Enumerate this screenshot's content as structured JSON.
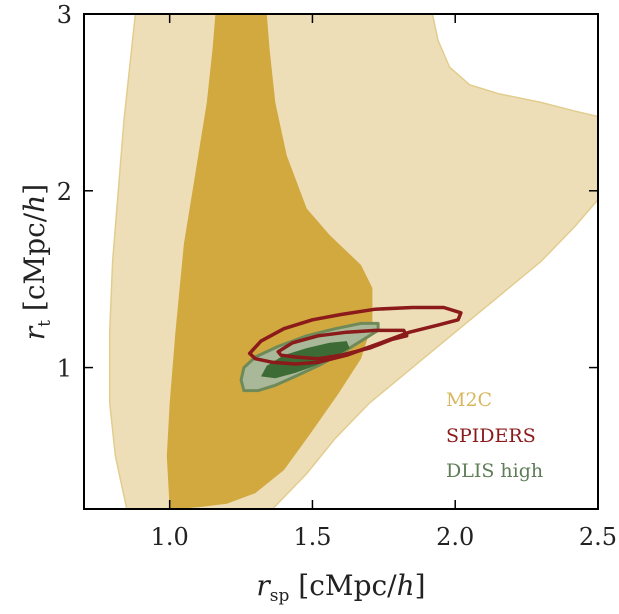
{
  "chart_data": {
    "type": "contour",
    "title": "",
    "xlabel": "r_sp [cMpc/h]",
    "ylabel": "r_t [cMpc/h]",
    "xlim": [
      0.7,
      2.5
    ],
    "ylim": [
      0.2,
      3.0
    ],
    "x_ticks": [
      1.0,
      1.5,
      2.0,
      2.5
    ],
    "x_tick_labels": [
      "1.0",
      "1.5",
      "2.0",
      "2.5"
    ],
    "y_ticks": [
      1,
      2,
      3
    ],
    "y_tick_labels": [
      "1",
      "2",
      "3"
    ],
    "grid": false,
    "legend_position": "bottom-right",
    "series": [
      {
        "name": "M2C",
        "color_outer": "#eedeb8",
        "color_inner": "#d2a93f",
        "edge_color": "#e2cd8e",
        "contours": [
          {
            "level": "outer",
            "points": [
              [
                0.85,
                0.2
              ],
              [
                0.81,
                0.5
              ],
              [
                0.79,
                0.8
              ],
              [
                0.79,
                1.2
              ],
              [
                0.8,
                1.6
              ],
              [
                0.82,
                2.0
              ],
              [
                0.84,
                2.4
              ],
              [
                0.86,
                2.7
              ],
              [
                0.88,
                3.0
              ],
              [
                1.92,
                3.0
              ],
              [
                1.94,
                2.85
              ],
              [
                1.98,
                2.7
              ],
              [
                2.05,
                2.6
              ],
              [
                2.15,
                2.55
              ],
              [
                2.3,
                2.5
              ],
              [
                2.42,
                2.45
              ],
              [
                2.5,
                2.42
              ],
              [
                2.5,
                2.15
              ],
              [
                2.5,
                1.95
              ],
              [
                2.42,
                1.8
              ],
              [
                2.3,
                1.6
              ],
              [
                2.15,
                1.4
              ],
              [
                2.0,
                1.2
              ],
              [
                1.85,
                1.0
              ],
              [
                1.7,
                0.8
              ],
              [
                1.58,
                0.6
              ],
              [
                1.48,
                0.4
              ],
              [
                1.36,
                0.2
              ]
            ]
          },
          {
            "level": "inner",
            "points": [
              [
                1.0,
                0.2
              ],
              [
                0.99,
                0.5
              ],
              [
                1.0,
                0.8
              ],
              [
                1.02,
                1.2
              ],
              [
                1.05,
                1.7
              ],
              [
                1.09,
                2.1
              ],
              [
                1.13,
                2.5
              ],
              [
                1.15,
                2.8
              ],
              [
                1.16,
                3.0
              ],
              [
                1.34,
                3.0
              ],
              [
                1.35,
                2.8
              ],
              [
                1.37,
                2.5
              ],
              [
                1.41,
                2.2
              ],
              [
                1.48,
                1.9
              ],
              [
                1.56,
                1.75
              ],
              [
                1.67,
                1.58
              ],
              [
                1.71,
                1.45
              ],
              [
                1.71,
                1.25
              ],
              [
                1.67,
                1.05
              ],
              [
                1.59,
                0.85
              ],
              [
                1.49,
                0.62
              ],
              [
                1.4,
                0.42
              ],
              [
                1.3,
                0.29
              ],
              [
                1.2,
                0.23
              ],
              [
                1.1,
                0.21
              ],
              [
                1.02,
                0.2
              ]
            ]
          }
        ]
      },
      {
        "name": "SPIDERS",
        "color": "#8b1a1a",
        "contours": [
          {
            "level": "outer",
            "points": [
              [
                1.28,
                1.08
              ],
              [
                1.32,
                1.15
              ],
              [
                1.4,
                1.22
              ],
              [
                1.5,
                1.27
              ],
              [
                1.6,
                1.3
              ],
              [
                1.72,
                1.33
              ],
              [
                1.85,
                1.34
              ],
              [
                1.96,
                1.34
              ],
              [
                2.02,
                1.31
              ],
              [
                2.01,
                1.27
              ],
              [
                1.94,
                1.24
              ],
              [
                1.84,
                1.2
              ],
              [
                1.74,
                1.14
              ],
              [
                1.62,
                1.07
              ],
              [
                1.52,
                1.03
              ],
              [
                1.44,
                1.02
              ],
              [
                1.36,
                1.03
              ],
              [
                1.3,
                1.05
              ]
            ]
          },
          {
            "level": "inner",
            "points": [
              [
                1.38,
                1.09
              ],
              [
                1.43,
                1.14
              ],
              [
                1.52,
                1.18
              ],
              [
                1.62,
                1.2
              ],
              [
                1.72,
                1.21
              ],
              [
                1.82,
                1.21
              ],
              [
                1.83,
                1.18
              ],
              [
                1.78,
                1.16
              ],
              [
                1.7,
                1.11
              ],
              [
                1.6,
                1.07
              ],
              [
                1.52,
                1.05
              ],
              [
                1.44,
                1.06
              ],
              [
                1.39,
                1.07
              ]
            ]
          }
        ]
      },
      {
        "name": "DLIS high",
        "color_outer": "#a8b898",
        "color_inner": "#3d6b35",
        "edge_color": "#6f8a58",
        "contours": [
          {
            "level": "outer",
            "points": [
              [
                1.26,
                0.87
              ],
              [
                1.25,
                0.93
              ],
              [
                1.26,
                1.0
              ],
              [
                1.3,
                1.06
              ],
              [
                1.38,
                1.12
              ],
              [
                1.48,
                1.18
              ],
              [
                1.58,
                1.22
              ],
              [
                1.67,
                1.25
              ],
              [
                1.73,
                1.25
              ],
              [
                1.73,
                1.21
              ],
              [
                1.68,
                1.16
              ],
              [
                1.6,
                1.08
              ],
              [
                1.52,
                1.01
              ],
              [
                1.44,
                0.95
              ],
              [
                1.37,
                0.9
              ],
              [
                1.31,
                0.87
              ]
            ]
          },
          {
            "level": "inner",
            "points": [
              [
                1.32,
                0.95
              ],
              [
                1.34,
                1.01
              ],
              [
                1.4,
                1.07
              ],
              [
                1.48,
                1.11
              ],
              [
                1.56,
                1.14
              ],
              [
                1.62,
                1.15
              ],
              [
                1.63,
                1.11
              ],
              [
                1.58,
                1.06
              ],
              [
                1.51,
                1.01
              ],
              [
                1.44,
                0.97
              ],
              [
                1.37,
                0.94
              ]
            ]
          }
        ]
      }
    ]
  }
}
